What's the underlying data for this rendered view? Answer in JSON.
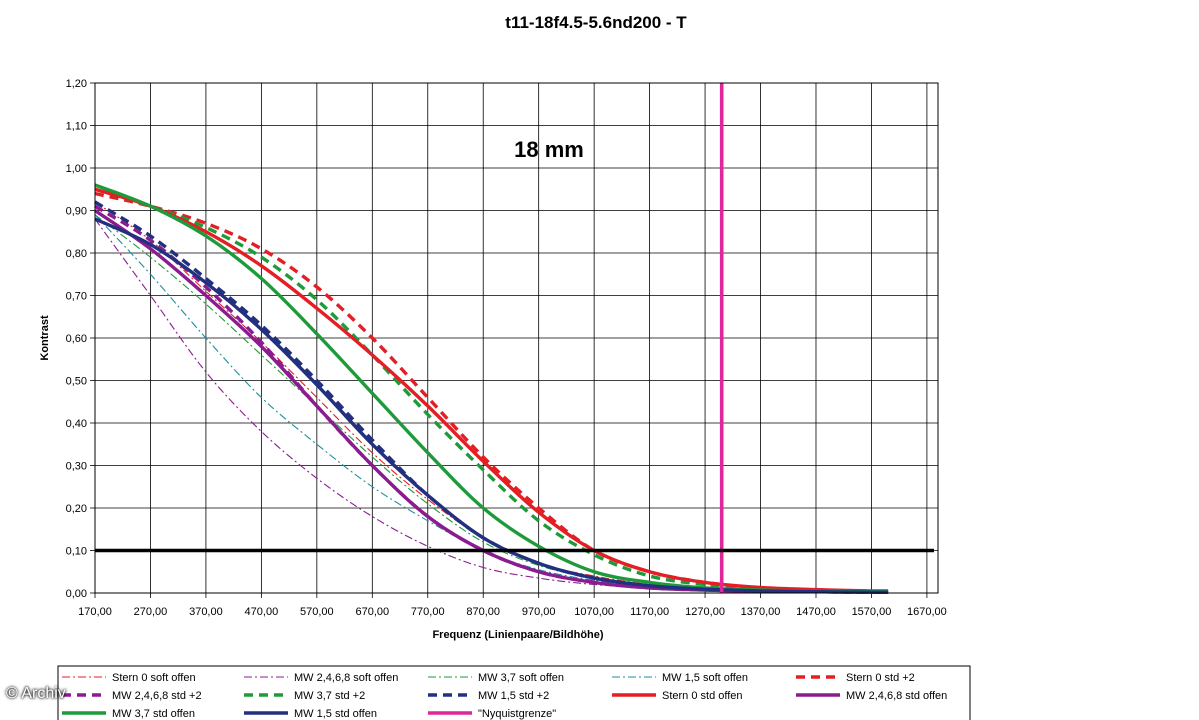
{
  "watermark": "© Archiv",
  "chart_data": {
    "type": "line",
    "title": "t11-18f4.5-5.6nd200 - T",
    "annotation": "18 mm",
    "xlabel": "Frequenz (Linienpaare/Bildhöhe)",
    "ylabel": "Kontrast",
    "xlim": [
      170,
      1690
    ],
    "ylim": [
      0,
      1.2
    ],
    "xticks": [
      "170,00",
      "270,00",
      "370,00",
      "470,00",
      "570,00",
      "670,00",
      "770,00",
      "870,00",
      "970,00",
      "1070,00",
      "1170,00",
      "1270,00",
      "1370,00",
      "1470,00",
      "1570,00",
      "1670,00"
    ],
    "yticks": [
      "0,00",
      "0,10",
      "0,20",
      "0,30",
      "0,40",
      "0,50",
      "0,60",
      "0,70",
      "0,80",
      "0,90",
      "1,00",
      "1,10",
      "1,20"
    ],
    "grid": true,
    "legend_position": "bottom",
    "colors": {
      "red": "#e31e24",
      "purple": "#8b1c8f",
      "green": "#1f9a3a",
      "teal": "#1f8fa0",
      "navy": "#22307f",
      "magenta": "#e0269a",
      "black": "#000000"
    },
    "reference_lines": [
      {
        "name": "\"Nyquistgrenze\"",
        "orientation": "vertical",
        "x": 1300,
        "color": "#e0269a"
      },
      {
        "name": "",
        "orientation": "horizontal",
        "y": 0.1,
        "color": "#000000"
      }
    ],
    "series": [
      {
        "name": "Stern 0 soft offen",
        "color": "#e31e24",
        "style": "dashdot-thin",
        "x": [
          170,
          270,
          370,
          470,
          570,
          670,
          770,
          870,
          970,
          1070,
          1170,
          1270,
          1370,
          1470,
          1570,
          1600
        ],
        "y": [
          0.92,
          0.83,
          0.71,
          0.59,
          0.46,
          0.33,
          0.22,
          0.13,
          0.07,
          0.04,
          0.02,
          0.012,
          0.008,
          0.005,
          0.003,
          0.003
        ]
      },
      {
        "name": "MW 2,4,6,8 soft offen",
        "color": "#8b1c8f",
        "style": "dashdot-thin",
        "x": [
          170,
          270,
          370,
          470,
          570,
          670,
          770,
          870,
          970,
          1070,
          1170,
          1270,
          1370,
          1470,
          1570,
          1600
        ],
        "y": [
          0.88,
          0.7,
          0.52,
          0.38,
          0.27,
          0.18,
          0.11,
          0.06,
          0.035,
          0.02,
          0.012,
          0.008,
          0.005,
          0.003,
          0.002,
          0.002
        ]
      },
      {
        "name": "MW 3,7 soft offen",
        "color": "#1f9a3a",
        "style": "dashdot-thin",
        "x": [
          170,
          270,
          370,
          470,
          570,
          670,
          770,
          870,
          970,
          1070,
          1170,
          1270,
          1370,
          1470,
          1570,
          1600
        ],
        "y": [
          0.89,
          0.79,
          0.68,
          0.56,
          0.44,
          0.32,
          0.21,
          0.12,
          0.065,
          0.035,
          0.02,
          0.012,
          0.007,
          0.004,
          0.003,
          0.003
        ]
      },
      {
        "name": "MW 1,5 soft offen",
        "color": "#1f8fa0",
        "style": "dashdot-thin",
        "x": [
          170,
          270,
          370,
          470,
          570,
          670,
          770,
          870,
          970,
          1070,
          1170,
          1270,
          1370,
          1470,
          1570,
          1600
        ],
        "y": [
          0.89,
          0.75,
          0.6,
          0.46,
          0.35,
          0.25,
          0.17,
          0.1,
          0.055,
          0.03,
          0.018,
          0.01,
          0.006,
          0.004,
          0.003,
          0.003
        ]
      },
      {
        "name": "Stern 0 std +2",
        "color": "#e31e24",
        "style": "dash-thick",
        "x": [
          170,
          270,
          370,
          470,
          570,
          670,
          770,
          870,
          970,
          1070,
          1170,
          1270,
          1370,
          1470,
          1570,
          1600
        ],
        "y": [
          0.94,
          0.91,
          0.87,
          0.81,
          0.72,
          0.6,
          0.46,
          0.32,
          0.2,
          0.1,
          0.05,
          0.025,
          0.012,
          0.007,
          0.004,
          0.004
        ]
      },
      {
        "name": "MW 2,4,6,8 std +2",
        "color": "#8b1c8f",
        "style": "dash-thick",
        "x": [
          170,
          270,
          370,
          470,
          570,
          670,
          770,
          870,
          970,
          1070,
          1170,
          1270,
          1370,
          1470,
          1570,
          1600
        ],
        "y": [
          0.91,
          0.83,
          0.72,
          0.59,
          0.44,
          0.3,
          0.18,
          0.1,
          0.05,
          0.025,
          0.012,
          0.007,
          0.004,
          0.003,
          0.002,
          0.002
        ]
      },
      {
        "name": "MW 3,7 std +2",
        "color": "#1f9a3a",
        "style": "dash-thick",
        "x": [
          170,
          270,
          370,
          470,
          570,
          670,
          770,
          870,
          970,
          1070,
          1170,
          1270,
          1370,
          1470,
          1570,
          1600
        ],
        "y": [
          0.95,
          0.91,
          0.86,
          0.79,
          0.69,
          0.56,
          0.42,
          0.29,
          0.17,
          0.09,
          0.04,
          0.02,
          0.01,
          0.006,
          0.004,
          0.004
        ]
      },
      {
        "name": "MW 1,5 std +2",
        "color": "#22307f",
        "style": "dash-thick",
        "x": [
          170,
          270,
          370,
          470,
          570,
          670,
          770,
          870,
          970,
          1070,
          1170,
          1270,
          1370,
          1470,
          1570,
          1600
        ],
        "y": [
          0.92,
          0.84,
          0.74,
          0.63,
          0.5,
          0.36,
          0.23,
          0.13,
          0.07,
          0.035,
          0.017,
          0.009,
          0.005,
          0.003,
          0.002,
          0.002
        ]
      },
      {
        "name": "Stern 0 std offen",
        "color": "#e31e24",
        "style": "solid-thick",
        "x": [
          170,
          270,
          370,
          470,
          570,
          670,
          770,
          870,
          970,
          1070,
          1170,
          1270,
          1370,
          1470,
          1570,
          1600
        ],
        "y": [
          0.95,
          0.91,
          0.85,
          0.77,
          0.67,
          0.56,
          0.44,
          0.31,
          0.19,
          0.1,
          0.05,
          0.025,
          0.013,
          0.008,
          0.005,
          0.005
        ]
      },
      {
        "name": "MW 2,4,6,8 std offen",
        "color": "#8b1c8f",
        "style": "solid-thick",
        "x": [
          170,
          270,
          370,
          470,
          570,
          670,
          770,
          870,
          970,
          1070,
          1170,
          1270,
          1370,
          1470,
          1570,
          1600
        ],
        "y": [
          0.9,
          0.81,
          0.7,
          0.58,
          0.44,
          0.3,
          0.18,
          0.1,
          0.05,
          0.025,
          0.012,
          0.007,
          0.004,
          0.003,
          0.002,
          0.002
        ]
      },
      {
        "name": "MW 3,7 std offen",
        "color": "#1f9a3a",
        "style": "solid-thick",
        "x": [
          170,
          270,
          370,
          470,
          570,
          670,
          770,
          870,
          970,
          1070,
          1170,
          1270,
          1370,
          1470,
          1570,
          1600
        ],
        "y": [
          0.96,
          0.91,
          0.84,
          0.74,
          0.61,
          0.47,
          0.33,
          0.2,
          0.11,
          0.05,
          0.025,
          0.012,
          0.007,
          0.004,
          0.003,
          0.003
        ]
      },
      {
        "name": "MW 1,5 std offen",
        "color": "#22307f",
        "style": "solid-thick",
        "x": [
          170,
          270,
          370,
          470,
          570,
          670,
          770,
          870,
          970,
          1070,
          1170,
          1270,
          1370,
          1470,
          1570,
          1600
        ],
        "y": [
          0.88,
          0.82,
          0.73,
          0.62,
          0.49,
          0.35,
          0.23,
          0.13,
          0.07,
          0.035,
          0.017,
          0.009,
          0.005,
          0.003,
          0.002,
          0.002
        ]
      },
      {
        "name": "\"Nyquistgrenze\"",
        "color": "#e0269a",
        "style": "solid-thick",
        "x": [
          1300,
          1300
        ],
        "y": [
          0,
          1.2
        ]
      }
    ]
  }
}
